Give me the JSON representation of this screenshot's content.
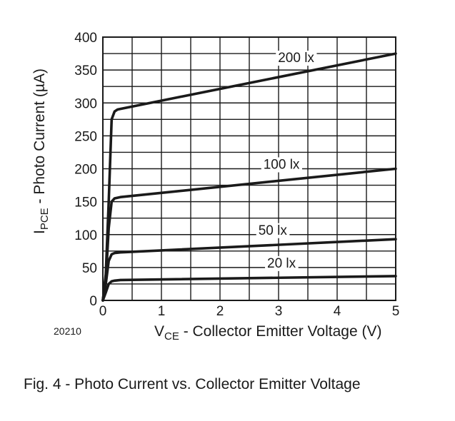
{
  "figure": {
    "code": "20210",
    "caption": "Fig. 4 - Photo Current vs. Collector Emitter Voltage"
  },
  "chart_data": {
    "type": "line",
    "title": "",
    "xlabel": {
      "main": "V",
      "sub": "CE",
      "rest": " - Collector Emitter Voltage (V)"
    },
    "ylabel": {
      "main": "I",
      "sub": "PCE",
      "rest": " - Photo Current (µA)"
    },
    "xlim": [
      0,
      5
    ],
    "ylim": [
      0,
      400
    ],
    "x_ticks": [
      "0",
      "1",
      "2",
      "3",
      "4",
      "5"
    ],
    "y_ticks": [
      "0",
      "50",
      "100",
      "150",
      "200",
      "250",
      "300",
      "350",
      "400"
    ],
    "grid": true,
    "legend": "none",
    "series": [
      {
        "name": "200 lx",
        "label_at": [
          3.3,
          362
        ],
        "x": [
          0,
          0.05,
          0.1,
          0.15,
          0.2,
          0.25,
          0.3,
          5
        ],
        "y": [
          0,
          40,
          150,
          275,
          287,
          290,
          291,
          375
        ]
      },
      {
        "name": "100 lx",
        "label_at": [
          3.05,
          200
        ],
        "x": [
          0,
          0.05,
          0.1,
          0.15,
          0.2,
          0.3,
          5
        ],
        "y": [
          0,
          30,
          110,
          150,
          155,
          157,
          200
        ]
      },
      {
        "name": "50 lx",
        "label_at": [
          2.9,
          100
        ],
        "x": [
          0,
          0.05,
          0.1,
          0.15,
          0.2,
          0.3,
          5
        ],
        "y": [
          0,
          25,
          60,
          70,
          72,
          73,
          93
        ]
      },
      {
        "name": "20 lx",
        "label_at": [
          3.05,
          50
        ],
        "x": [
          0,
          0.05,
          0.1,
          0.15,
          0.2,
          0.3,
          5
        ],
        "y": [
          0,
          12,
          25,
          29,
          30,
          31,
          37
        ]
      }
    ]
  }
}
